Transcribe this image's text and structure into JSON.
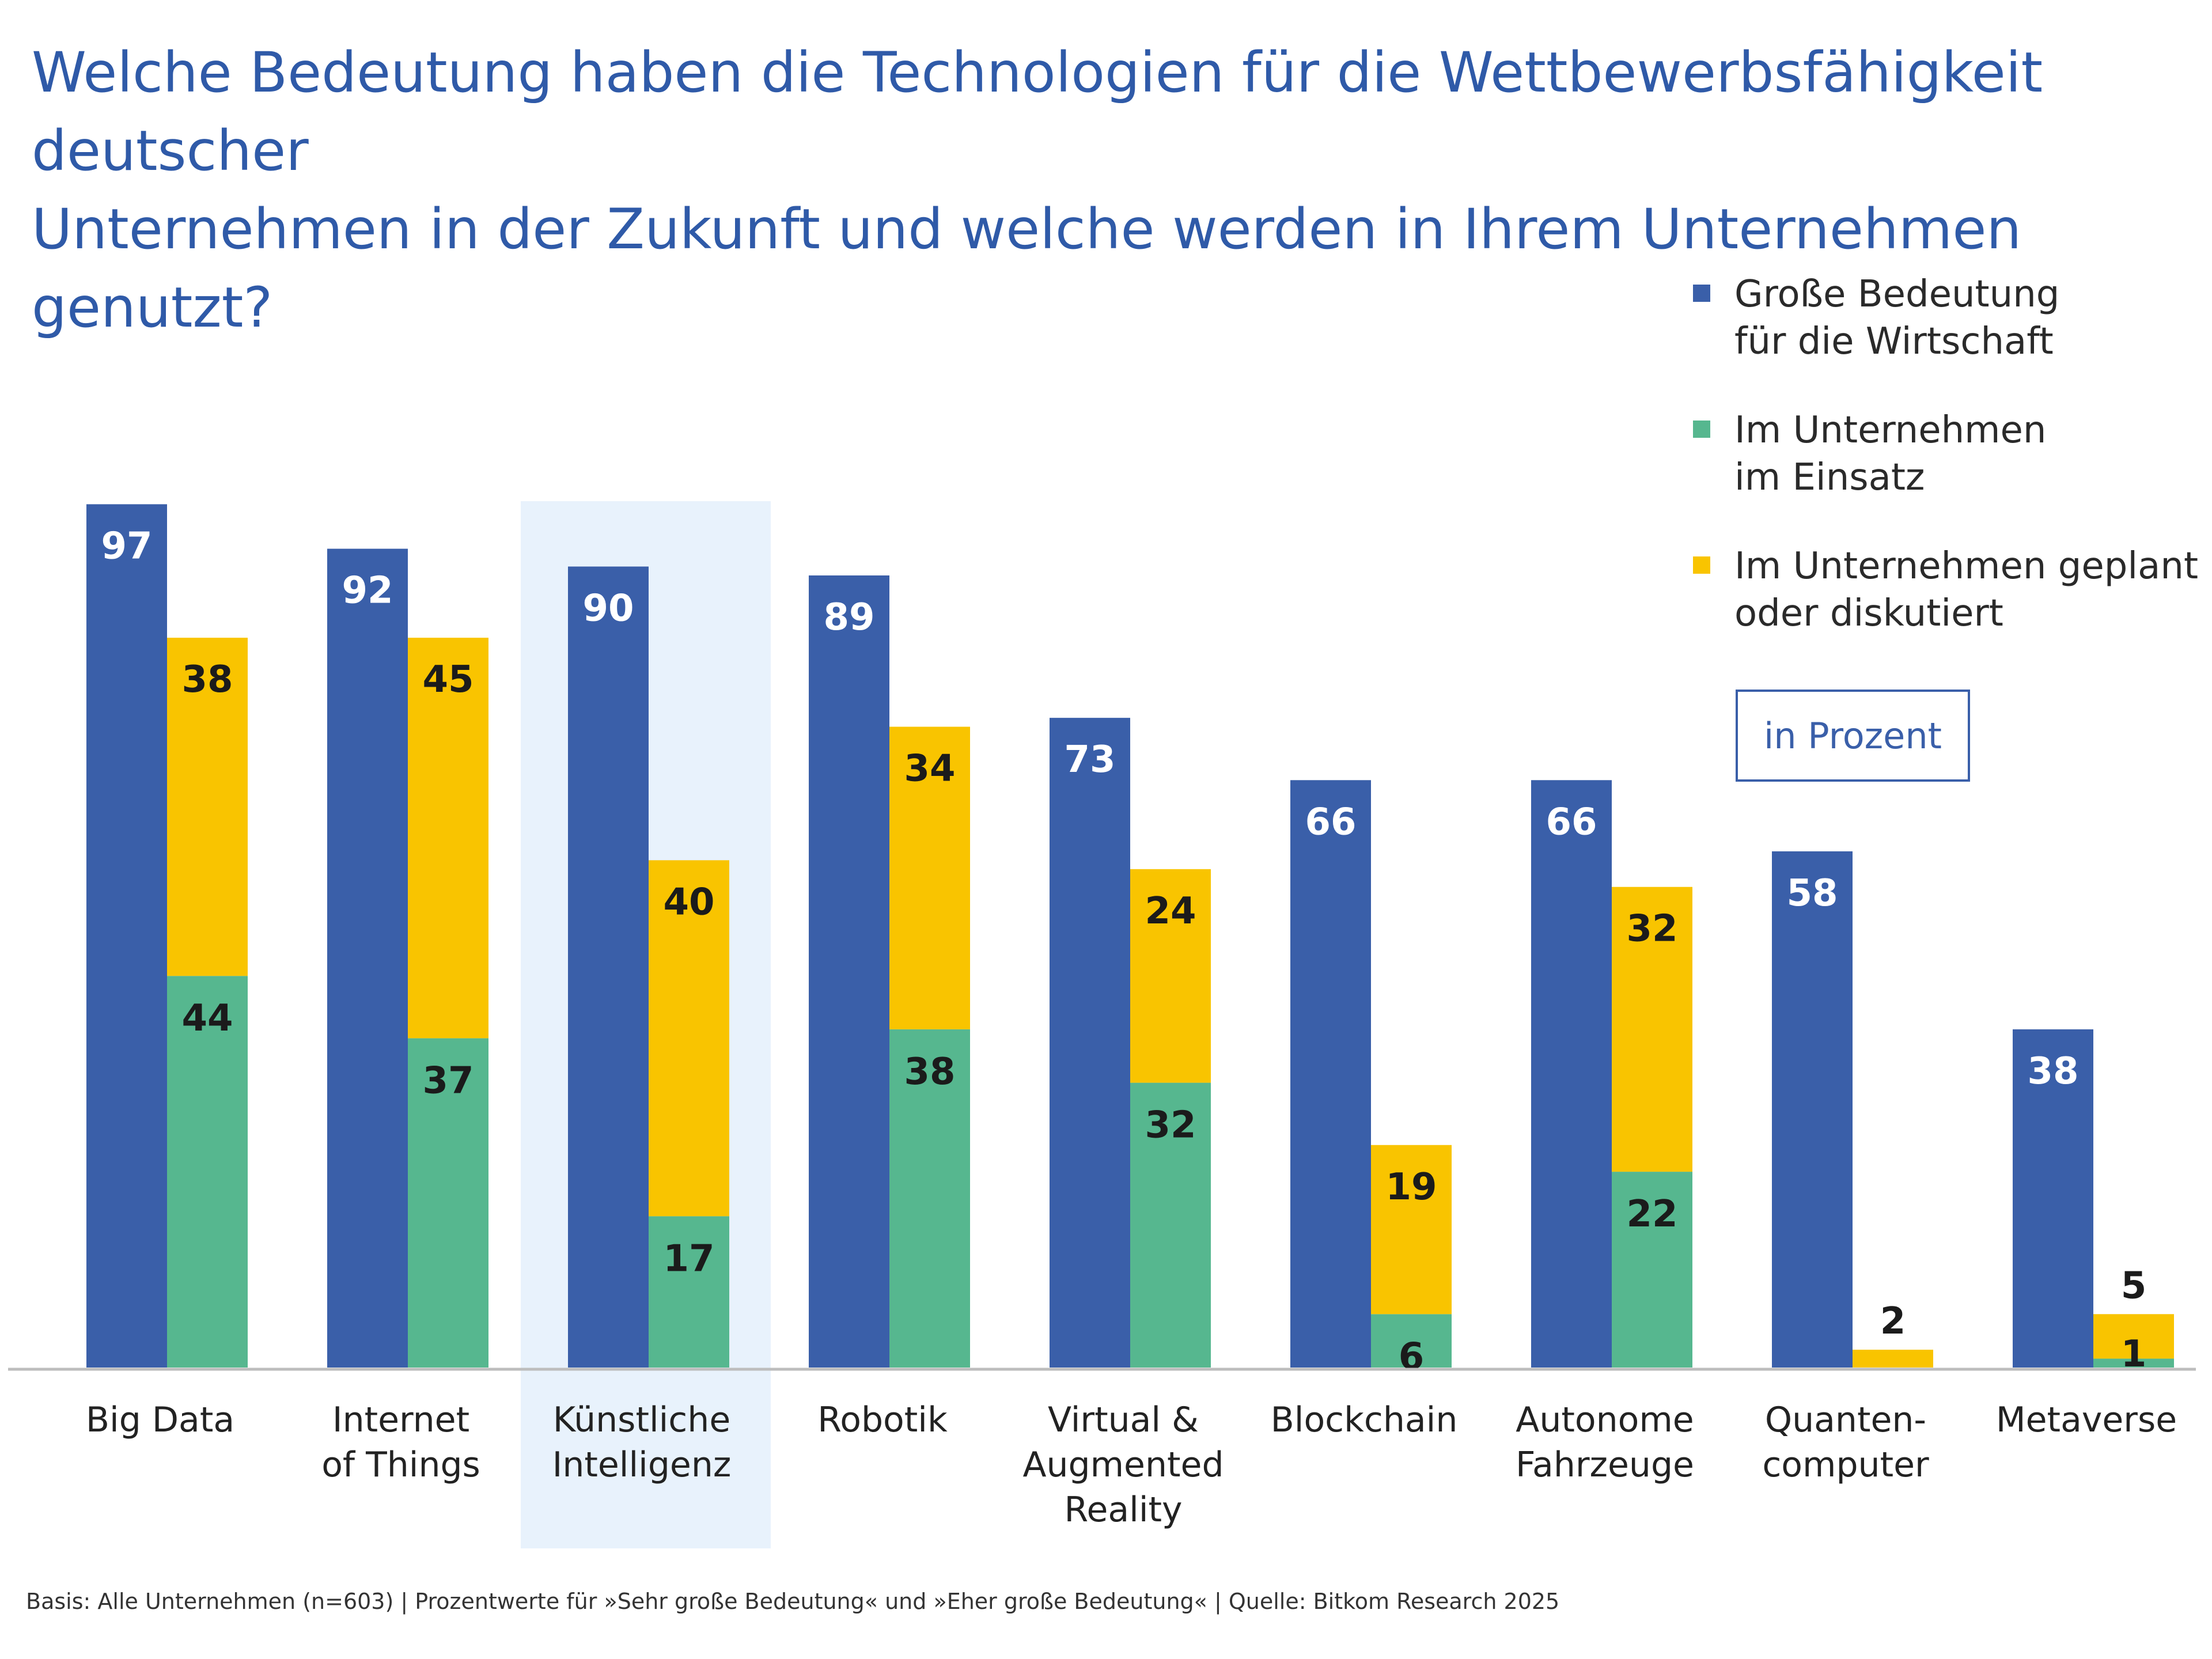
{
  "title_line1": "Welche Bedeutung haben die Technologien für die Wettbewerbsfähigkeit deutscher",
  "title_line2": "Unternehmen in der Zukunft und welche werden in Ihrem Unternehmen genutzt?",
  "legend": [
    {
      "line1": "Große Bedeutung",
      "line2": "für die Wirtschaft",
      "color": "#3a5fa9"
    },
    {
      "line1": "Im Unternehmen",
      "line2": "im Einsatz",
      "color": "#56b78f"
    },
    {
      "line1": "Im Unternehmen geplant",
      "line2": "oder diskutiert",
      "color": "#f9c400"
    }
  ],
  "unit_label": "in Prozent",
  "footnote": "Basis: Alle Unternehmen (n=603) | Prozentwerte für »Sehr große Bedeutung« und »Eher große Bedeutung« | Quelle: Bitkom Research 2025",
  "chart_data": {
    "type": "bar",
    "title": "Welche Bedeutung haben die Technologien für die Wettbewerbsfähigkeit deutscher Unternehmen in der Zukunft und welche werden in Ihrem Unternehmen genutzt?",
    "categories": [
      [
        "Big Data"
      ],
      [
        "Internet",
        "of Things"
      ],
      [
        "Künstliche",
        "Intelligenz"
      ],
      [
        "Robotik"
      ],
      [
        "Virtual &",
        "Augmented",
        "Reality"
      ],
      [
        "Blockchain"
      ],
      [
        "Autonome",
        "Fahrzeuge"
      ],
      [
        "Quanten-",
        "computer"
      ],
      [
        "Metaverse"
      ]
    ],
    "highlighted_category_index": 2,
    "series": [
      {
        "name": "Große Bedeutung für die Wirtschaft",
        "color": "#3a5fa9",
        "values": [
          97,
          92,
          90,
          89,
          73,
          66,
          66,
          58,
          38
        ]
      },
      {
        "name": "Im Unternehmen im Einsatz",
        "color": "#56b78f",
        "values": [
          44,
          37,
          17,
          38,
          32,
          6,
          22,
          null,
          1
        ]
      },
      {
        "name": "Im Unternehmen geplant oder diskutiert",
        "color": "#f9c400",
        "values": [
          38,
          45,
          40,
          34,
          24,
          19,
          32,
          2,
          5
        ]
      }
    ],
    "stacked_series": [
      "Im Unternehmen im Einsatz",
      "Im Unternehmen geplant oder diskutiert"
    ],
    "unit": "Prozent",
    "ylim": [
      0,
      100
    ],
    "grid": false,
    "legend_position": "top-right"
  }
}
